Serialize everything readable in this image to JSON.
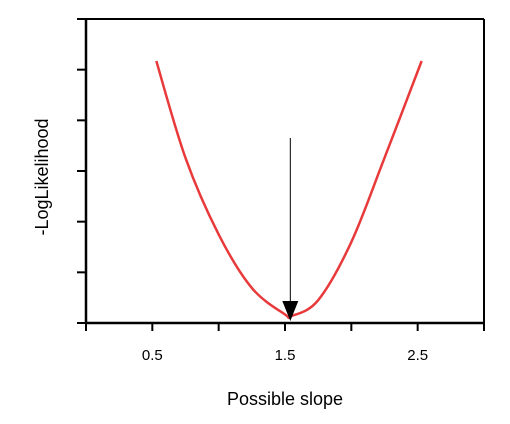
{
  "chart_data": {
    "type": "line",
    "title": "",
    "xlabel": "Possible slope",
    "ylabel": "-LogLikelihood",
    "xlim": [
      0,
      3
    ],
    "x_tick_positions": [
      0,
      0.5,
      1.0,
      1.5,
      2.0,
      2.5,
      3.0
    ],
    "x_tick_labels": [
      "0.5",
      "1.5",
      "2.5"
    ],
    "x_tick_label_values": [
      0.5,
      1.5,
      2.5
    ],
    "y_tick_count": 7,
    "y_tick_labels": [],
    "grid": false,
    "legend": "none",
    "colors": {
      "curve": "#e8393b",
      "axis": "#000000",
      "arrow": "#000000"
    },
    "series": [
      {
        "x": [
          0.53,
          0.75,
          1.0,
          1.25,
          1.5,
          1.55,
          1.75,
          2.0,
          2.25,
          2.53
        ],
        "y": [
          5.0,
          3.1,
          1.6,
          0.55,
          0.03,
          0.0,
          0.31,
          1.45,
          3.1,
          5.0
        ]
      }
    ],
    "annotation": {
      "type": "arrow",
      "x": 1.54,
      "label": ""
    }
  }
}
